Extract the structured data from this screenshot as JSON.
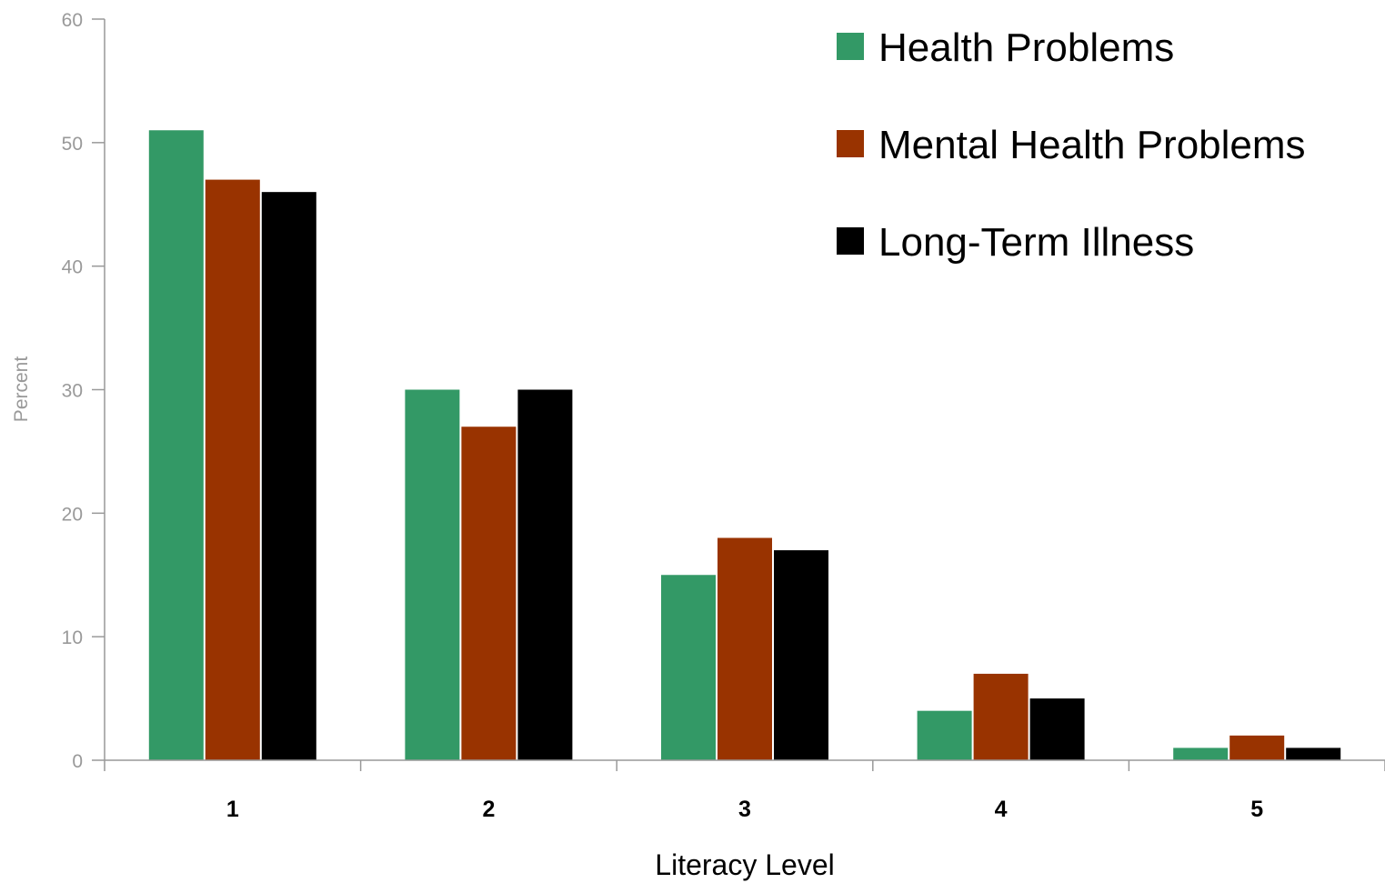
{
  "chart_data": {
    "type": "bar",
    "xlabel": "Literacy Level",
    "ylabel": "Percent",
    "categories": [
      "1",
      "2",
      "3",
      "4",
      "5"
    ],
    "ylim": [
      0,
      60
    ],
    "yticks": [
      0,
      10,
      20,
      30,
      40,
      50,
      60
    ],
    "grid": false,
    "legend_position": "top-right",
    "series": [
      {
        "name": "Health Problems",
        "color": "#339966",
        "values": [
          51,
          30,
          15,
          4,
          1
        ]
      },
      {
        "name": "Mental Health Problems",
        "color": "#993300",
        "values": [
          47,
          27,
          18,
          7,
          2
        ]
      },
      {
        "name": "Long-Term Illness",
        "color": "#000000",
        "values": [
          46,
          30,
          17,
          5,
          1
        ]
      }
    ]
  }
}
